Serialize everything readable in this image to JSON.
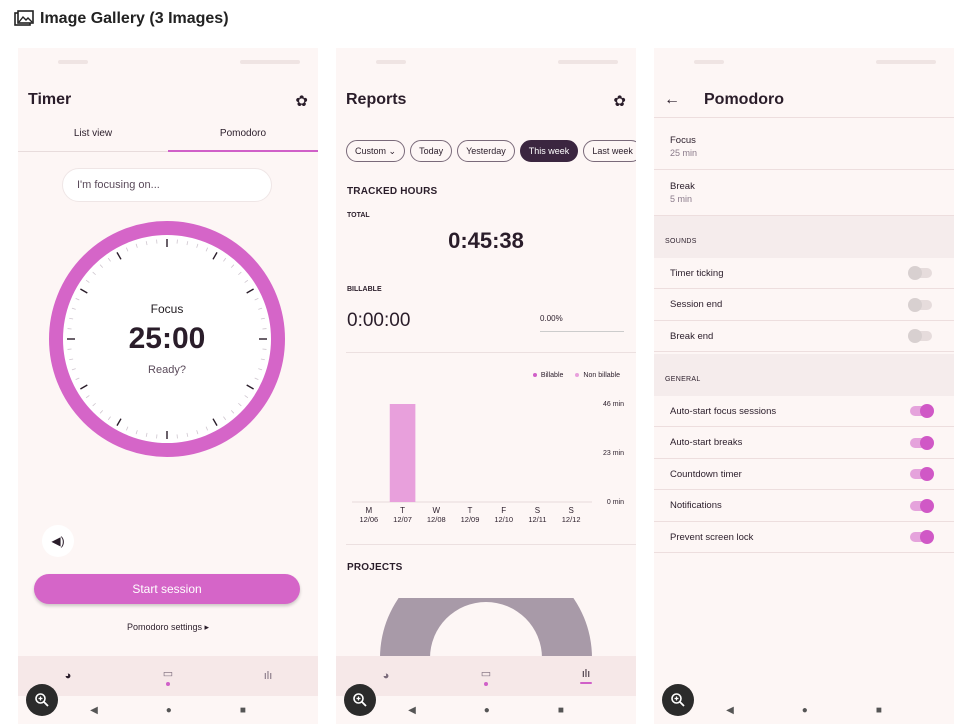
{
  "gallery": {
    "title": "Image Gallery (3 Images)"
  },
  "timer": {
    "title": "Timer",
    "tabs": [
      "List view",
      "Pomodoro"
    ],
    "focus_placeholder": "I'm focusing on...",
    "mode": "Focus",
    "time": "25:00",
    "state": "Ready?",
    "start_label": "Start session",
    "settings_link": "Pomodoro settings ▸",
    "accent": "#d565c8"
  },
  "reports": {
    "title": "Reports",
    "chips": [
      "Custom ⌄",
      "Today",
      "Yesterday",
      "This week",
      "Last week"
    ],
    "tracked_heading": "TRACKED HOURS",
    "total_label": "TOTAL",
    "total_value": "0:45:38",
    "billable_label": "BILLABLE",
    "billable_value": "0:00:00",
    "billable_percent": "0.00%",
    "projects_heading": "PROJECTS",
    "chart_data": {
      "type": "bar",
      "categories": [
        "M 12/06",
        "T 12/07",
        "W 12/08",
        "T 12/09",
        "F 12/10",
        "S 12/11",
        "S 12/12"
      ],
      "day_letters": [
        "M",
        "T",
        "W",
        "T",
        "F",
        "S",
        "S"
      ],
      "dates": [
        "12/06",
        "12/07",
        "12/08",
        "12/09",
        "12/10",
        "12/11",
        "12/12"
      ],
      "series": [
        {
          "name": "Billable",
          "color": "#d060c8",
          "values": [
            0,
            0,
            0,
            0,
            0,
            0,
            0
          ]
        },
        {
          "name": "Non billable",
          "color": "#e8a0dc",
          "values": [
            0,
            46,
            0,
            0,
            0,
            0,
            0
          ]
        }
      ],
      "y_ticks": [
        "46 min",
        "23 min",
        "0 min"
      ],
      "ylim": [
        0,
        46
      ],
      "legend": "top-right",
      "grid": false
    }
  },
  "pomodoro": {
    "title": "Pomodoro",
    "focus_label": "Focus",
    "focus_value": "25 min",
    "break_label": "Break",
    "break_value": "5 min",
    "sounds_heading": "SOUNDS",
    "sounds": [
      {
        "label": "Timer ticking",
        "on": false
      },
      {
        "label": "Session end",
        "on": false
      },
      {
        "label": "Break end",
        "on": false
      }
    ],
    "general_heading": "GENERAL",
    "general": [
      {
        "label": "Auto-start focus sessions",
        "on": true
      },
      {
        "label": "Auto-start breaks",
        "on": true
      },
      {
        "label": "Countdown timer",
        "on": true
      },
      {
        "label": "Notifications",
        "on": true
      },
      {
        "label": "Prevent screen lock",
        "on": true
      }
    ]
  },
  "icons": [
    "image-gallery-icon",
    "gear-icon",
    "back-arrow-icon",
    "volume-icon",
    "timer-nav-icon",
    "calendar-nav-icon",
    "reports-nav-icon",
    "zoom-icon",
    "sys-back-icon",
    "sys-home-icon",
    "sys-recents-icon"
  ]
}
